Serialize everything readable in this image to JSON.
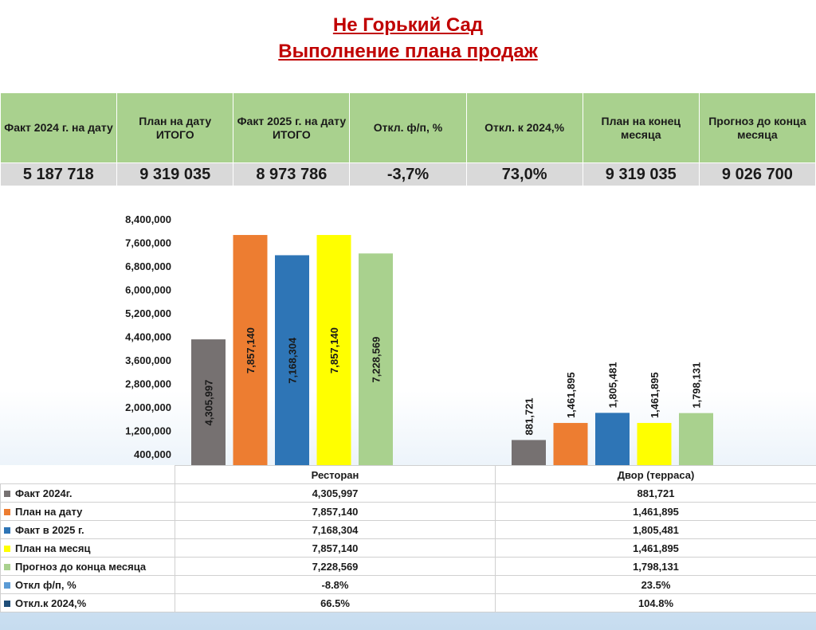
{
  "header": {
    "title_line1": "Не Горький Сад",
    "title_line2": "Выполнение плана продаж"
  },
  "kpi_table": {
    "columns": [
      {
        "label": "Факт 2024 г. на дату",
        "value": "5 187 718"
      },
      {
        "label": "План на дату ИТОГО",
        "value": "9 319 035"
      },
      {
        "label": "Факт 2025 г. на дату ИТОГО",
        "value": "8 973 786"
      },
      {
        "label": "Откл. ф/п, %",
        "value": "-3,7%"
      },
      {
        "label": "Откл. к 2024,%",
        "value": "73,0%"
      },
      {
        "label": "План на конец месяца",
        "value": "9 319 035"
      },
      {
        "label": "Прогноз до конца месяца",
        "value": "9 026 700"
      }
    ]
  },
  "chart_data": {
    "type": "bar",
    "title": "",
    "xlabel": "",
    "ylabel": "",
    "categories": [
      "Ресторан",
      "Двор (терраса)"
    ],
    "ylim": [
      0,
      8400000
    ],
    "yticks": [
      "400,000",
      "1,200,000",
      "2,000,000",
      "2,800,000",
      "3,600,000",
      "4,400,000",
      "5,200,000",
      "6,000,000",
      "6,800,000",
      "7,600,000",
      "8,400,000"
    ],
    "ytick_values": [
      400000,
      1200000,
      2000000,
      2800000,
      3600000,
      4400000,
      5200000,
      6000000,
      6800000,
      7600000,
      8400000
    ],
    "grid": false,
    "legend": "data-table-bottom",
    "series": [
      {
        "name": "Факт 2024г.",
        "color": "#767171",
        "values": [
          4305997,
          881721
        ],
        "labels": [
          "4,305,997",
          "881,721"
        ],
        "plotted": true
      },
      {
        "name": "План на дату",
        "color": "#ed7d31",
        "values": [
          7857140,
          1461895
        ],
        "labels": [
          "7,857,140",
          "1,461,895"
        ],
        "plotted": true
      },
      {
        "name": "Факт в 2025 г.",
        "color": "#2e75b6",
        "values": [
          7168304,
          1805481
        ],
        "labels": [
          "7,168,304",
          "1,805,481"
        ],
        "plotted": true
      },
      {
        "name": "План на месяц",
        "color": "#ffff00",
        "values": [
          7857140,
          1461895
        ],
        "labels": [
          "7,857,140",
          "1,461,895"
        ],
        "plotted": true
      },
      {
        "name": "Прогноз до конца месяца",
        "color": "#a9d18e",
        "values": [
          7228569,
          1798131
        ],
        "labels": [
          "7,228,569",
          "1,798,131"
        ],
        "plotted": true
      },
      {
        "name": "Откл ф/п, %",
        "color": "#5b9bd5",
        "values": [
          -8.8,
          23.5
        ],
        "labels": [
          "-8.8%",
          "23.5%"
        ],
        "plotted": false
      },
      {
        "name": "Откл.к 2024,%",
        "color": "#1f4e79",
        "values": [
          66.5,
          104.8
        ],
        "labels": [
          "66.5%",
          "104.8%"
        ],
        "plotted": false
      }
    ]
  }
}
